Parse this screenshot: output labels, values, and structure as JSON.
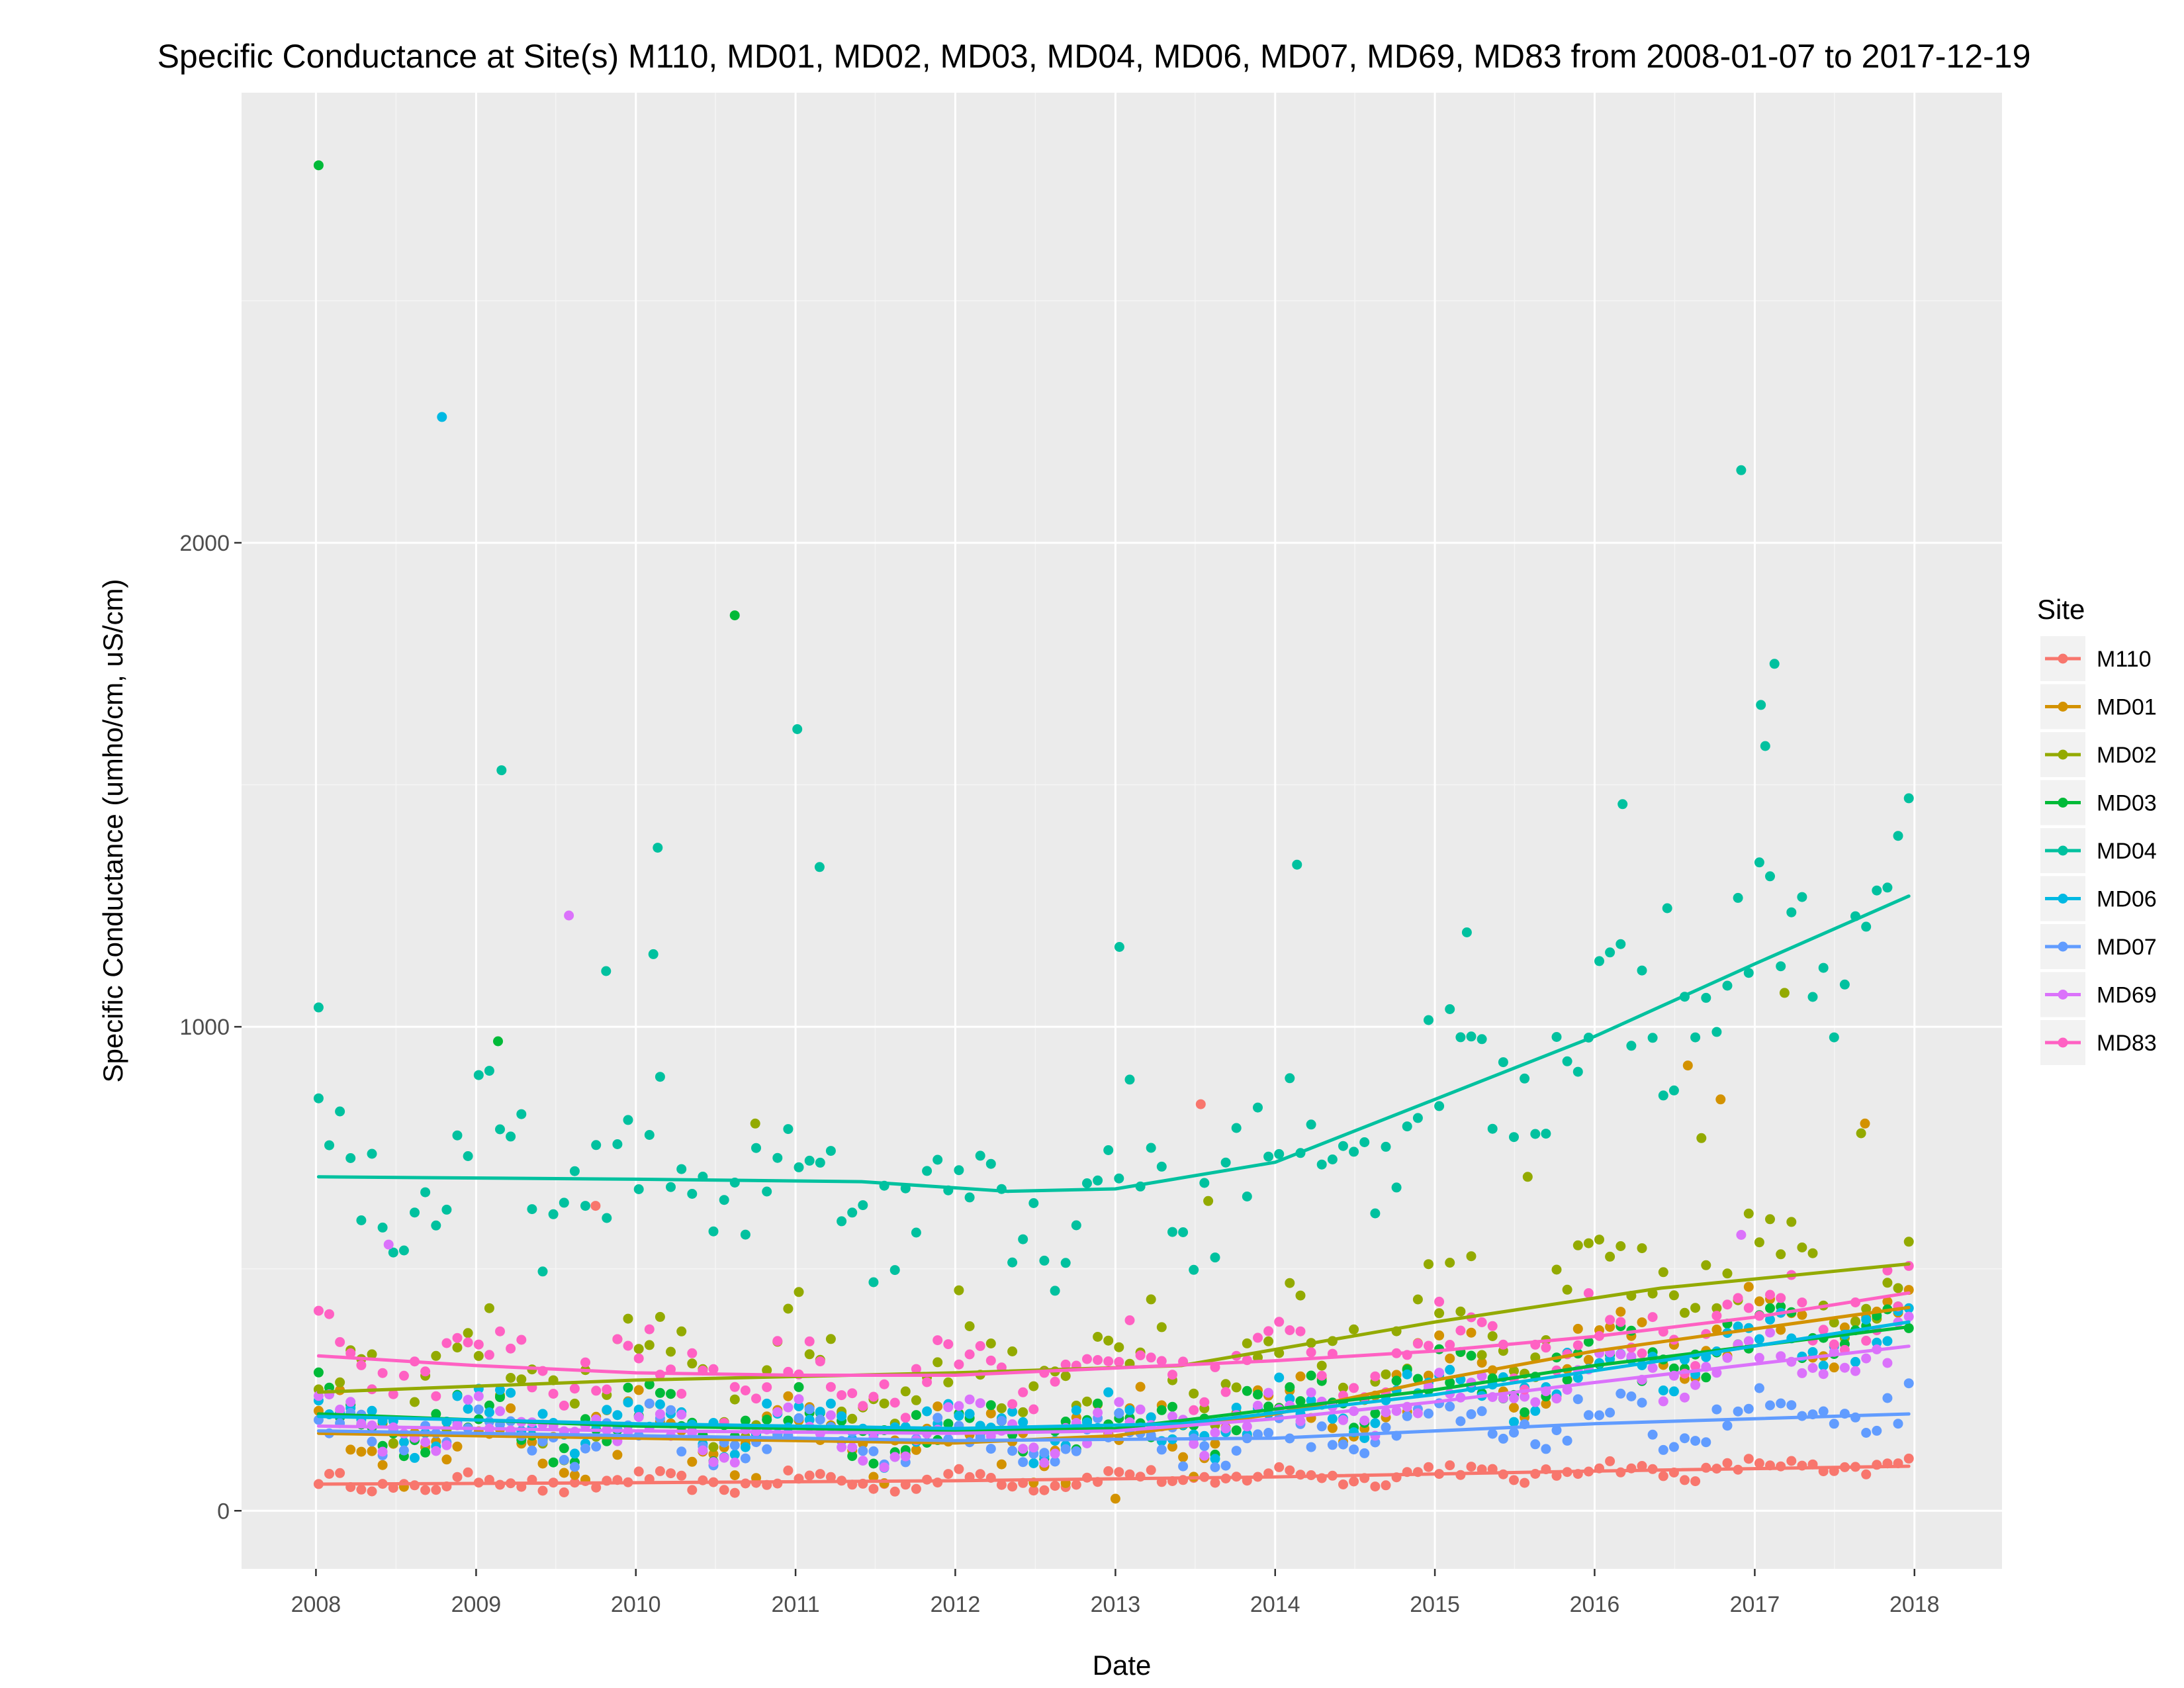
{
  "chart_data": {
    "type": "scatter",
    "title": "Specific Conductance at Site(s) M110, MD01, MD02, MD03, MD04, MD06, MD07, MD69, MD83 from 2008-01-07 to 2017-12-19",
    "xlabel": "Date",
    "ylabel": "Specific Conductance (umho/cm, uS/cm)",
    "x_ticks": [
      "2008",
      "2009",
      "2010",
      "2011",
      "2012",
      "2013",
      "2014",
      "2015",
      "2016",
      "2017",
      "2018"
    ],
    "y_ticks": [
      "0",
      "1000",
      "2000"
    ],
    "xlim": [
      "2007-07-15",
      "2018-07-20"
    ],
    "ylim": [
      -120,
      2930
    ],
    "grid": true,
    "legend_position": "right",
    "legend_title": "Site",
    "series": [
      {
        "name": "M110",
        "color": "#F8766D",
        "trend": [
          [
            "2008-01-07",
            55
          ],
          [
            "2010-01-01",
            58
          ],
          [
            "2012-01-01",
            62
          ],
          [
            "2014-01-01",
            70
          ],
          [
            "2016-01-01",
            82
          ],
          [
            "2017-12-19",
            92
          ]
        ],
        "outliers": [
          [
            "2009-10-01",
            630
          ],
          [
            "2013-07-15",
            840
          ]
        ]
      },
      {
        "name": "MD01",
        "color": "#D39200",
        "trend": [
          [
            "2008-01-07",
            160
          ],
          [
            "2010-01-01",
            150
          ],
          [
            "2012-01-01",
            140
          ],
          [
            "2013-01-01",
            155
          ],
          [
            "2014-01-01",
            200
          ],
          [
            "2015-01-01",
            270
          ],
          [
            "2016-01-01",
            330
          ],
          [
            "2017-12-19",
            420
          ]
        ],
        "outliers": [
          [
            "2016-08-01",
            920
          ],
          [
            "2016-10-15",
            850
          ],
          [
            "2017-09-10",
            800
          ],
          [
            "2013-01-01",
            25
          ]
        ]
      },
      {
        "name": "MD02",
        "color": "#93AA00",
        "trend": [
          [
            "2008-01-07",
            245
          ],
          [
            "2010-01-01",
            270
          ],
          [
            "2012-01-01",
            285
          ],
          [
            "2013-06-01",
            300
          ],
          [
            "2015-01-01",
            390
          ],
          [
            "2016-06-01",
            460
          ],
          [
            "2017-12-19",
            510
          ]
        ],
        "outliers": [
          [
            "2017-03-10",
            1070
          ],
          [
            "2010-10-01",
            800
          ],
          [
            "2013-08-01",
            640
          ],
          [
            "2015-08-01",
            690
          ],
          [
            "2016-09-01",
            770
          ],
          [
            "2017-09-01",
            780
          ]
        ]
      },
      {
        "name": "MD03",
        "color": "#00BA38",
        "trend": [
          [
            "2008-01-07",
            200
          ],
          [
            "2010-01-01",
            175
          ],
          [
            "2012-01-01",
            165
          ],
          [
            "2013-01-01",
            170
          ],
          [
            "2014-01-01",
            210
          ],
          [
            "2015-01-01",
            250
          ],
          [
            "2016-01-01",
            300
          ],
          [
            "2017-12-19",
            380
          ]
        ],
        "outliers": [
          [
            "2008-01-07",
            2780
          ],
          [
            "2010-08-15",
            1850
          ],
          [
            "2009-02-20",
            970
          ]
        ]
      },
      {
        "name": "MD04",
        "color": "#00C19F",
        "trend": [
          [
            "2008-01-07",
            690
          ],
          [
            "2010-01-01",
            685
          ],
          [
            "2011-06-01",
            680
          ],
          [
            "2012-05-01",
            660
          ],
          [
            "2013-01-01",
            665
          ],
          [
            "2014-01-01",
            720
          ],
          [
            "2015-01-01",
            850
          ],
          [
            "2016-01-01",
            980
          ],
          [
            "2017-01-01",
            1130
          ],
          [
            "2017-12-19",
            1270
          ]
        ],
        "outliers": [
          [
            "2009-02-28",
            1530
          ],
          [
            "2011-01-05",
            1615
          ],
          [
            "2011-02-25",
            1330
          ],
          [
            "2010-02-20",
            1370
          ],
          [
            "2010-02-10",
            1150
          ],
          [
            "2009-10-25",
            1115
          ],
          [
            "2013-01-10",
            1165
          ],
          [
            "2014-02-20",
            1335
          ],
          [
            "2015-03-15",
            1195
          ],
          [
            "2016-03-05",
            1460
          ],
          [
            "2016-06-15",
            1245
          ],
          [
            "2016-12-01",
            2150
          ],
          [
            "2017-01-15",
            1665
          ],
          [
            "2017-02-15",
            1750
          ],
          [
            "2017-01-25",
            1580
          ],
          [
            "2008-01-07",
            1040
          ]
        ]
      },
      {
        "name": "MD06",
        "color": "#00B9E3",
        "trend": [
          [
            "2008-01-07",
            195
          ],
          [
            "2010-01-01",
            180
          ],
          [
            "2012-01-01",
            170
          ],
          [
            "2013-06-01",
            180
          ],
          [
            "2015-01-01",
            240
          ],
          [
            "2016-06-01",
            310
          ],
          [
            "2017-12-19",
            390
          ]
        ],
        "outliers": [
          [
            "2008-10-15",
            2260
          ]
        ]
      },
      {
        "name": "MD07",
        "color": "#619CFF",
        "trend": [
          [
            "2008-01-07",
            165
          ],
          [
            "2010-01-01",
            155
          ],
          [
            "2012-01-01",
            145
          ],
          [
            "2014-01-01",
            150
          ],
          [
            "2016-01-01",
            180
          ],
          [
            "2017-12-19",
            200
          ]
        ],
        "outliers": []
      },
      {
        "name": "MD69",
        "color": "#DB72FB",
        "trend": [
          [
            "2008-01-07",
            175
          ],
          [
            "2010-01-01",
            165
          ],
          [
            "2012-01-01",
            160
          ],
          [
            "2013-01-01",
            165
          ],
          [
            "2014-01-01",
            190
          ],
          [
            "2015-01-01",
            225
          ],
          [
            "2016-01-01",
            265
          ],
          [
            "2017-12-19",
            340
          ]
        ],
        "outliers": [
          [
            "2009-08-01",
            1230
          ],
          [
            "2008-06-15",
            550
          ],
          [
            "2016-12-01",
            570
          ]
        ]
      },
      {
        "name": "MD83",
        "color": "#FF61C3",
        "trend": [
          [
            "2008-01-07",
            320
          ],
          [
            "2009-01-01",
            300
          ],
          [
            "2010-01-01",
            285
          ],
          [
            "2011-01-01",
            280
          ],
          [
            "2012-01-01",
            280
          ],
          [
            "2013-01-01",
            295
          ],
          [
            "2014-01-01",
            310
          ],
          [
            "2015-01-01",
            330
          ],
          [
            "2016-01-01",
            360
          ],
          [
            "2017-01-01",
            400
          ],
          [
            "2017-12-19",
            450
          ]
        ],
        "outliers": []
      }
    ]
  }
}
